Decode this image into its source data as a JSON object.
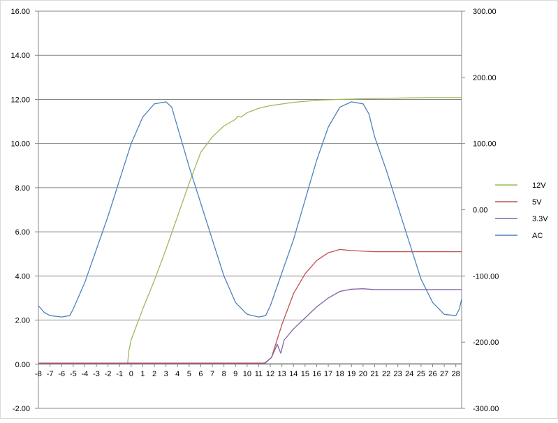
{
  "chart_data": {
    "type": "line",
    "title": "",
    "xlabel": "",
    "ylabel": "",
    "x_ticks": [
      "-8",
      "-7",
      "-6",
      "-5",
      "-4",
      "-3",
      "-2",
      "-1",
      "0",
      "1",
      "2",
      "3",
      "4",
      "5",
      "6",
      "7",
      "8",
      "9",
      "10",
      "11",
      "12",
      "13",
      "14",
      "15",
      "16",
      "17",
      "18",
      "19",
      "20",
      "21",
      "22",
      "23",
      "24",
      "25",
      "26",
      "27",
      "28"
    ],
    "xlim": [
      -8,
      28.5
    ],
    "ylim": [
      -2,
      16
    ],
    "y_ticks": [
      "-2.00",
      "0.00",
      "2.00",
      "4.00",
      "6.00",
      "8.00",
      "10.00",
      "12.00",
      "14.00",
      "16.00"
    ],
    "y2lim": [
      -300,
      300
    ],
    "y2_ticks": [
      "-300.00",
      "-200.00",
      "-100.00",
      "0.00",
      "100.00",
      "200.00",
      "300.00"
    ],
    "grid": true,
    "legend_position": "right",
    "series": [
      {
        "name": "12V",
        "color": "#9bbb59",
        "axis": "left",
        "points": [
          [
            -8,
            0.05
          ],
          [
            -0.3,
            0.05
          ],
          [
            -0.2,
            0.6
          ],
          [
            0,
            1.1
          ],
          [
            1,
            2.5
          ],
          [
            2,
            3.8
          ],
          [
            3,
            5.2
          ],
          [
            4,
            6.7
          ],
          [
            5,
            8.2
          ],
          [
            6,
            9.6
          ],
          [
            7,
            10.3
          ],
          [
            8,
            10.8
          ],
          [
            9,
            11.1
          ],
          [
            9.2,
            11.25
          ],
          [
            9.5,
            11.2
          ],
          [
            10,
            11.4
          ],
          [
            11,
            11.6
          ],
          [
            12,
            11.72
          ],
          [
            14,
            11.87
          ],
          [
            16,
            11.96
          ],
          [
            18,
            12.0
          ],
          [
            20,
            12.03
          ],
          [
            22,
            12.05
          ],
          [
            24,
            12.07
          ],
          [
            26,
            12.08
          ],
          [
            28.5,
            12.08
          ]
        ]
      },
      {
        "name": "5V",
        "color": "#c0504d",
        "axis": "left",
        "points": [
          [
            -8,
            0.05
          ],
          [
            11.5,
            0.05
          ],
          [
            12.1,
            0.3
          ],
          [
            13,
            1.8
          ],
          [
            14,
            3.2
          ],
          [
            15,
            4.1
          ],
          [
            16,
            4.7
          ],
          [
            17,
            5.05
          ],
          [
            18,
            5.2
          ],
          [
            19,
            5.15
          ],
          [
            21,
            5.1
          ],
          [
            28.5,
            5.1
          ]
        ]
      },
      {
        "name": "3.3V",
        "color": "#8064a2",
        "axis": "left",
        "points": [
          [
            -8,
            0.02
          ],
          [
            11.5,
            0.02
          ],
          [
            12.1,
            0.3
          ],
          [
            12.6,
            0.9
          ],
          [
            12.9,
            0.5
          ],
          [
            13.2,
            1.1
          ],
          [
            14,
            1.6
          ],
          [
            15,
            2.1
          ],
          [
            16,
            2.6
          ],
          [
            17,
            3.0
          ],
          [
            18,
            3.3
          ],
          [
            19,
            3.4
          ],
          [
            20,
            3.42
          ],
          [
            21,
            3.38
          ],
          [
            28.5,
            3.38
          ]
        ]
      },
      {
        "name": "AC",
        "color": "#4f81bd",
        "axis": "right",
        "points": [
          [
            -8,
            -145
          ],
          [
            -7.5,
            -155
          ],
          [
            -7,
            -160
          ],
          [
            -6,
            -162
          ],
          [
            -5.3,
            -160
          ],
          [
            -5,
            -150
          ],
          [
            -4,
            -110
          ],
          [
            -3,
            -60
          ],
          [
            -2,
            -10
          ],
          [
            -1,
            45
          ],
          [
            0,
            100
          ],
          [
            0.5,
            120
          ],
          [
            1,
            140
          ],
          [
            2,
            160
          ],
          [
            3,
            163
          ],
          [
            3.5,
            155
          ],
          [
            4,
            125
          ],
          [
            5,
            65
          ],
          [
            6,
            10
          ],
          [
            7,
            -45
          ],
          [
            8,
            -100
          ],
          [
            9,
            -140
          ],
          [
            10,
            -158
          ],
          [
            11,
            -162
          ],
          [
            11.6,
            -160
          ],
          [
            12,
            -145
          ],
          [
            13,
            -95
          ],
          [
            14,
            -45
          ],
          [
            15,
            15
          ],
          [
            16,
            75
          ],
          [
            17,
            125
          ],
          [
            18,
            155
          ],
          [
            19,
            163
          ],
          [
            20,
            160
          ],
          [
            20.5,
            145
          ],
          [
            21,
            110
          ],
          [
            22,
            60
          ],
          [
            23,
            5
          ],
          [
            24,
            -50
          ],
          [
            25,
            -105
          ],
          [
            26,
            -140
          ],
          [
            27,
            -158
          ],
          [
            28,
            -160
          ],
          [
            28.3,
            -150
          ],
          [
            28.5,
            -135
          ]
        ]
      }
    ]
  }
}
